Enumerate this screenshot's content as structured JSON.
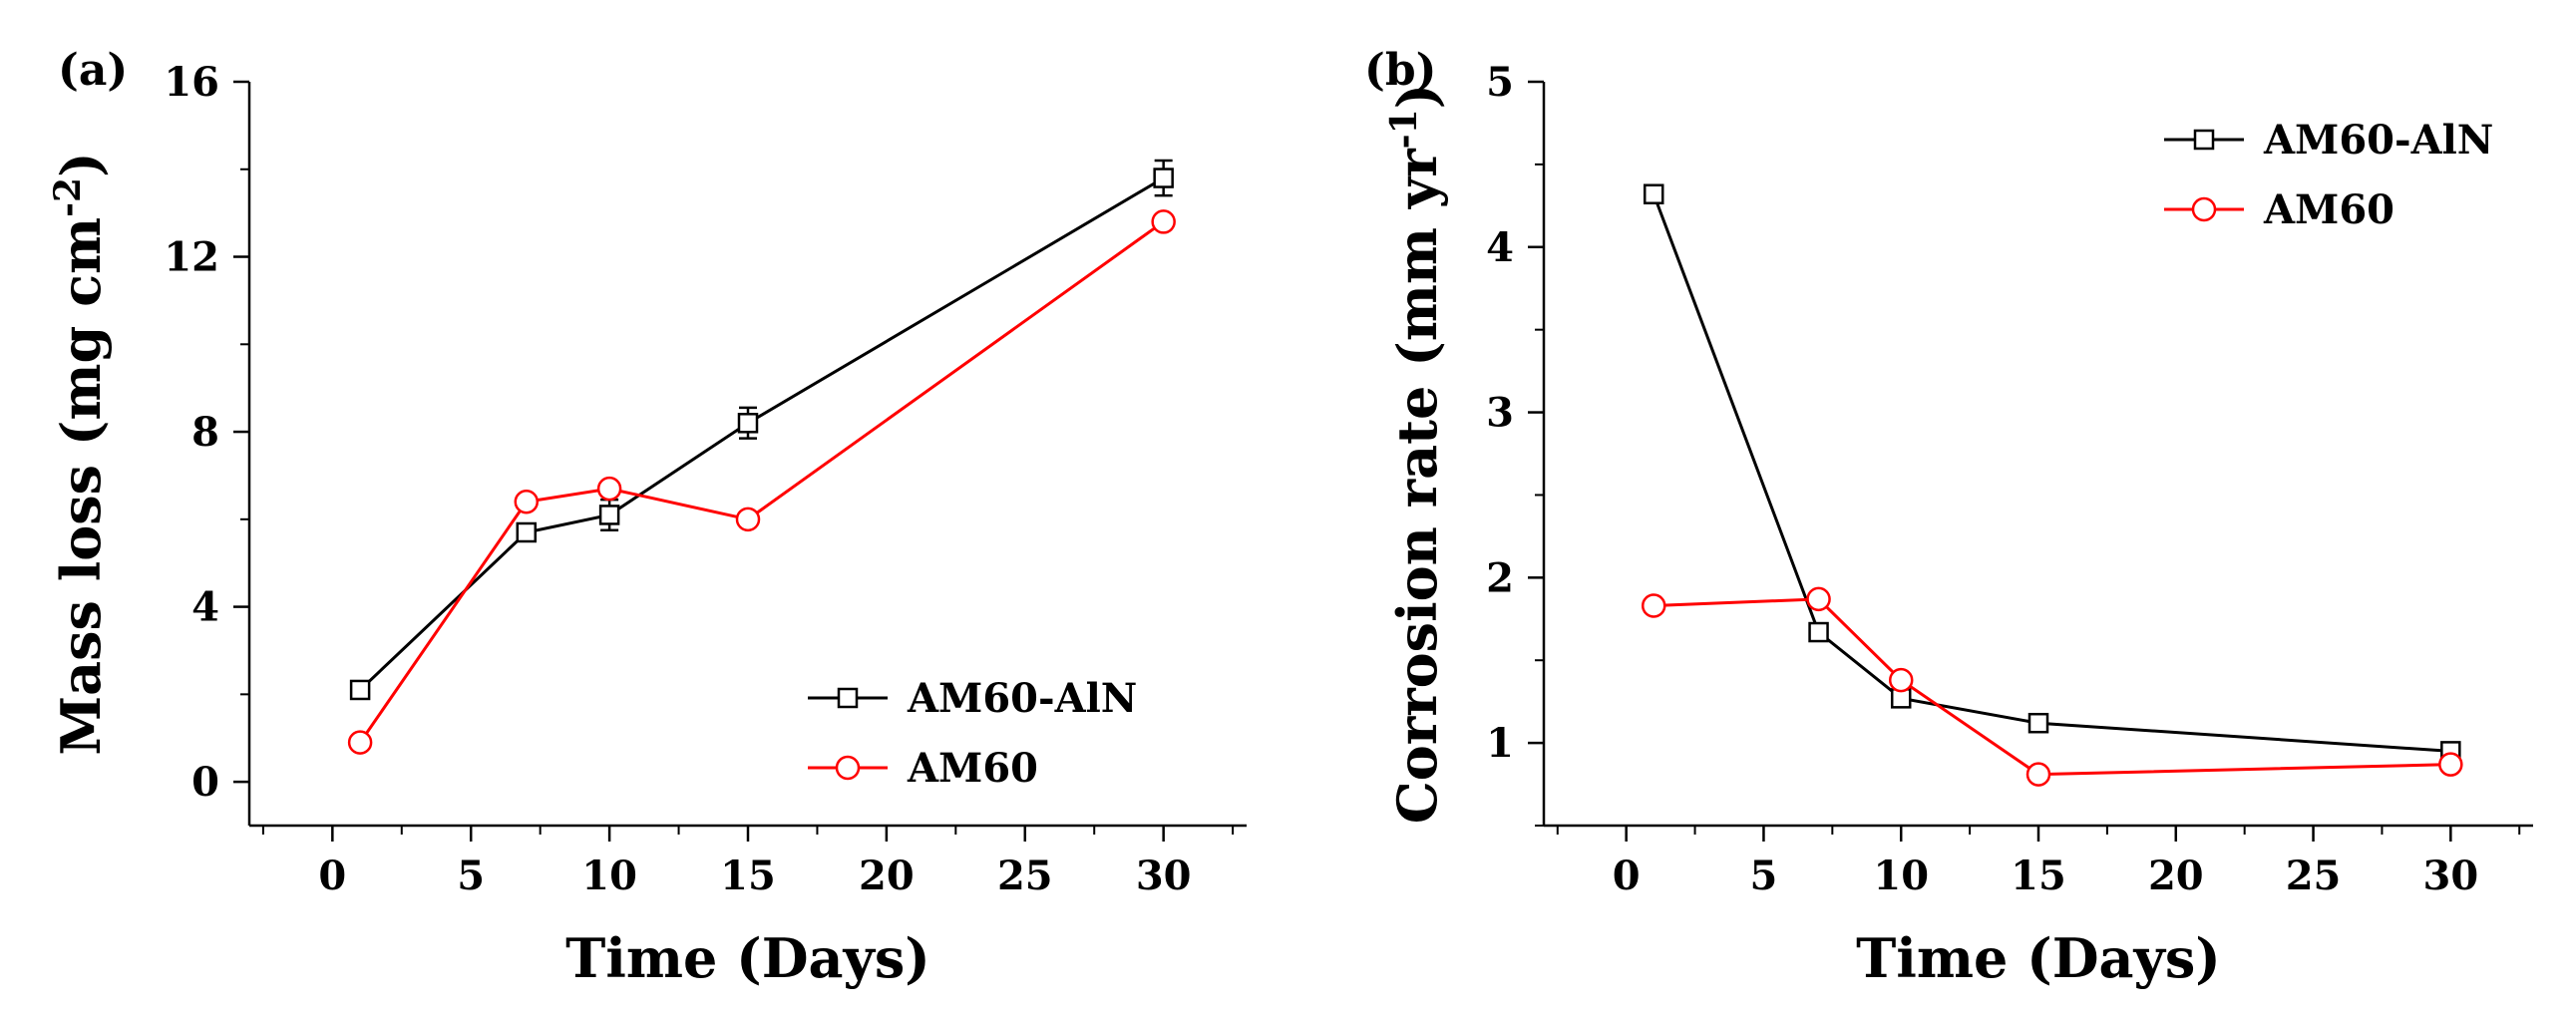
{
  "figure": {
    "panels": [
      {
        "label": "(a)"
      },
      {
        "label": "(b)"
      }
    ]
  },
  "chart_data": [
    {
      "type": "line",
      "panel": "(a)",
      "xlabel": "Time (Days)",
      "ylabel": "Mass loss (mg cm",
      "ylabel_sup": "-2",
      "ylabel_end": ")",
      "xlim": [
        -3,
        33
      ],
      "ylim": [
        -1,
        16
      ],
      "xticks": [
        0,
        5,
        10,
        15,
        20,
        25,
        30
      ],
      "yticks": [
        0,
        4,
        8,
        12,
        16
      ],
      "legend_position": "bottom-right",
      "series": [
        {
          "name": "AM60-AlN",
          "color": "#000000",
          "marker": "square",
          "x": [
            1,
            7,
            10,
            15,
            30
          ],
          "y": [
            2.1,
            5.7,
            6.1,
            8.2,
            13.8
          ],
          "err": [
            0.15,
            0.2,
            0.35,
            0.35,
            0.4
          ]
        },
        {
          "name": "AM60",
          "color": "#ff0000",
          "marker": "circle",
          "x": [
            1,
            7,
            10,
            15,
            30
          ],
          "y": [
            0.9,
            6.4,
            6.7,
            6.0,
            12.8
          ],
          "err": [
            0,
            0,
            0,
            0,
            0
          ]
        }
      ]
    },
    {
      "type": "line",
      "panel": "(b)",
      "xlabel": "Time (Days)",
      "ylabel": "Corrosion rate (mm yr",
      "ylabel_sup": "-1",
      "ylabel_end": ")",
      "xlim": [
        -3,
        33
      ],
      "ylim": [
        0.5,
        5
      ],
      "xticks": [
        0,
        5,
        10,
        15,
        20,
        25,
        30
      ],
      "yticks": [
        1,
        2,
        3,
        4,
        5
      ],
      "legend_position": "top-right",
      "series": [
        {
          "name": "AM60-AlN",
          "color": "#000000",
          "marker": "square",
          "x": [
            1,
            7,
            10,
            15,
            30
          ],
          "y": [
            4.32,
            1.67,
            1.27,
            1.12,
            0.95
          ],
          "err": [
            0.04,
            0.05,
            0.04,
            0.03,
            0.03
          ]
        },
        {
          "name": "AM60",
          "color": "#ff0000",
          "marker": "circle",
          "x": [
            1,
            7,
            10,
            15,
            30
          ],
          "y": [
            1.83,
            1.87,
            1.38,
            0.81,
            0.87
          ],
          "err": [
            0,
            0,
            0,
            0,
            0
          ]
        }
      ]
    }
  ]
}
